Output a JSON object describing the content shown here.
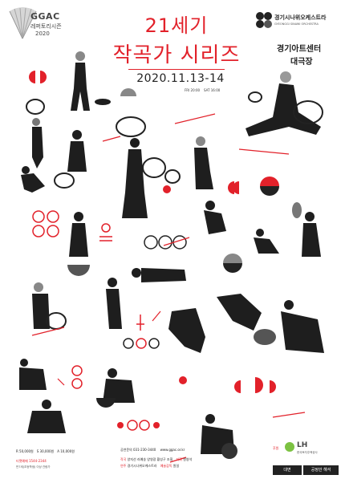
{
  "festival": {
    "logo_text": "GGAC",
    "subtitle": "레퍼토리시즌",
    "year": "2020"
  },
  "title": {
    "line1": "21세기",
    "line2": "작곡가 시리즈",
    "date": "2020.11.13-14",
    "time1": "FRI 20:00",
    "time2": "SAT 16:00"
  },
  "orchestra": {
    "name_kr": "경기시나위오케스트라",
    "name_en": "GYEONGGI SINAWI ORCHESTRA"
  },
  "venue": {
    "line1": "경기아트센터",
    "line2": "대극장"
  },
  "tickets": {
    "r": "R 50,000원",
    "s": "S 30,000원",
    "a": "A 10,000원",
    "booking_label": "티켓예매 1544-2344",
    "age": "만7세(초등학생) 이상 관람가"
  },
  "info": {
    "inquiry": "공연문의 031-230-3440",
    "web": "www.ggac.or.kr",
    "composer_label": "작곡",
    "composers": "양지선 라예송 양영광 황성구 조휘",
    "conductor_label": "지휘",
    "conductor": "원영석",
    "performer_label": "연주",
    "performer": "경기시나위오케스트라",
    "director_label": "예술감독",
    "director": "원일"
  },
  "sponsor": {
    "label": "후원",
    "name": "LH",
    "name_sub": "한국토지주택공사"
  },
  "badges": {
    "left": "대면",
    "right": "공정만 해석"
  },
  "colors": {
    "accent": "#e2212a",
    "ink": "#1c1c1c"
  }
}
